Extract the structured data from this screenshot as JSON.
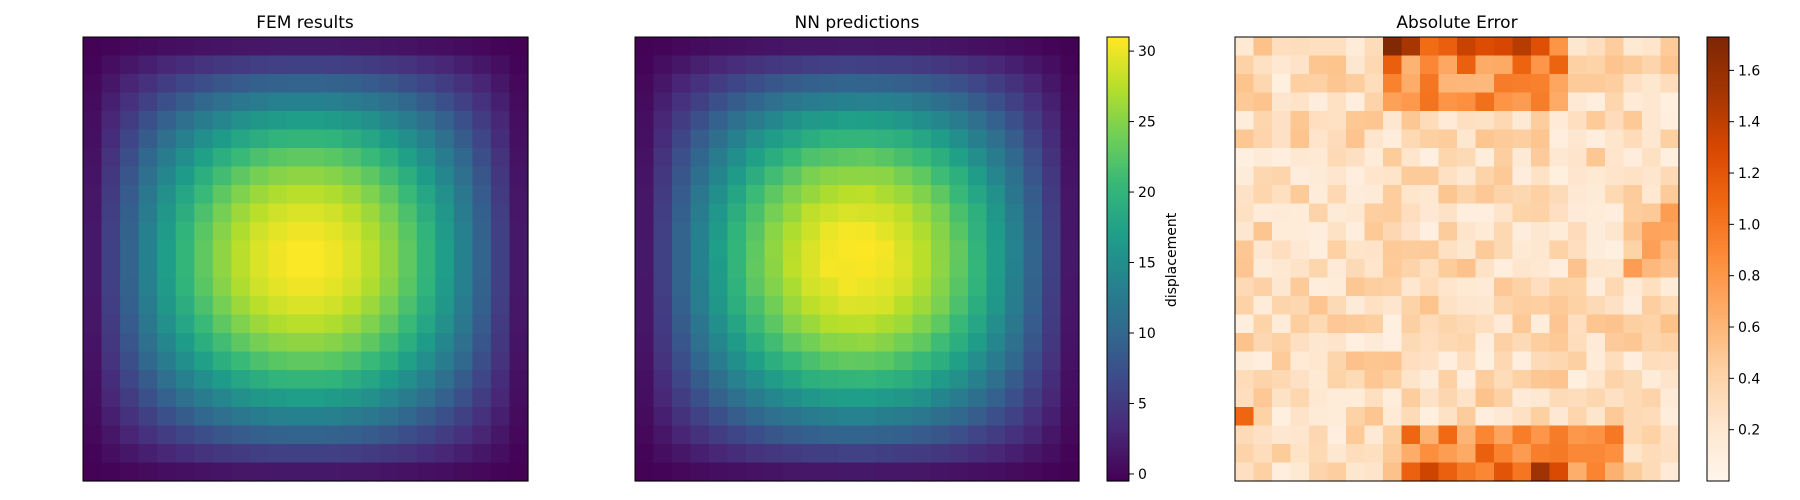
{
  "chart_data": [
    {
      "type": "heatmap",
      "title": "FEM results",
      "grid": {
        "rows": 24,
        "cols": 24
      },
      "colormap": "viridis",
      "value_range": [
        0,
        31
      ],
      "field": "sin-product: value(i,j) = peak * sin(pi*(i+0.5)/24) * sin(pi*(j+0.5)/24)",
      "peak": 31,
      "axes_visible": false
    },
    {
      "type": "heatmap",
      "title": "NN predictions",
      "grid": {
        "rows": 24,
        "cols": 24
      },
      "colormap": "viridis",
      "value_range": [
        0,
        31
      ],
      "peak": 31,
      "axes_visible": false,
      "colorbar": {
        "label": "displacement",
        "ticks": [
          0,
          5,
          10,
          15,
          20,
          25,
          30
        ],
        "range": [
          -0.5,
          31
        ]
      }
    },
    {
      "type": "heatmap",
      "title": "Absolute Error",
      "grid": {
        "rows": 24,
        "cols": 24
      },
      "colormap": "oranges",
      "value_range": [
        0,
        1.73
      ],
      "axes_visible": false,
      "colorbar": {
        "label": "",
        "ticks": [
          0.2,
          0.4,
          0.6,
          0.8,
          1.0,
          1.2,
          1.4,
          1.6
        ],
        "range": [
          0,
          1.73
        ]
      },
      "pattern": {
        "top_band": {
          "rows": [
            0,
            1,
            2,
            3
          ],
          "cols_high": [
            8,
            17
          ],
          "max": 1.72
        },
        "bottom_band": {
          "rows": [
            21,
            22,
            23
          ],
          "cols_high": [
            9,
            20
          ],
          "max": 1.55
        },
        "interior_typical": 0.25
      }
    }
  ],
  "colors": {
    "viridis": [
      "#440154",
      "#482878",
      "#3e4989",
      "#31688e",
      "#26828e",
      "#1f9e89",
      "#35b779",
      "#6ece58",
      "#b5de2b",
      "#fde725"
    ],
    "oranges": [
      "#fff5eb",
      "#fee6ce",
      "#fdd0a2",
      "#fdae6b",
      "#fd8d3c",
      "#f16913",
      "#d94801",
      "#a63603",
      "#7f2704"
    ]
  }
}
